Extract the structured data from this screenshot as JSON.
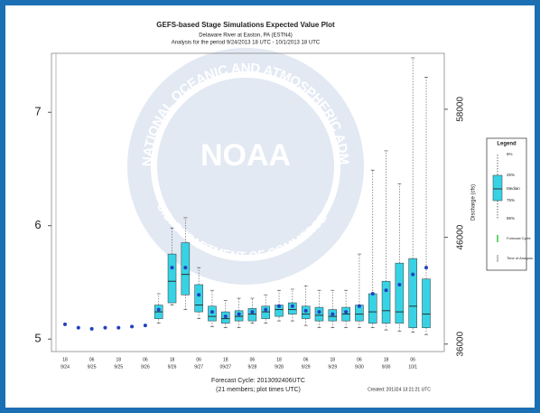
{
  "chart_data": {
    "type": "box",
    "title": "GEFS-based Stage Simulations Expected Value Plot",
    "subtitle": "Delaware River at Easton, PA (ESTN4)",
    "analysis_period": "Analysis  for the period 9/24/2013 18 UTC  -  10/1/2013 18 UTC",
    "y2_label": "Discharge (cfs)",
    "footer_cycle": "Forecast Cycle:  2013092406UTC",
    "footer_members": "(21 members; plot times UTC)",
    "created": "Created:  201324  13:21:21 UTC",
    "watermark": {
      "logo": "NOAA",
      "ring_top": "NATIONAL OCEANIC AND ATMOSPHERIC ADMINISTRATION",
      "ring_bottom": "U.S. DEPARTMENT OF COMMERCE"
    },
    "categories": [
      {
        "hour": "18",
        "date": "9/24"
      },
      null,
      {
        "hour": "06",
        "date": "9/25"
      },
      null,
      {
        "hour": "18",
        "date": "9/25"
      },
      null,
      {
        "hour": "06",
        "date": "9/26"
      },
      null,
      {
        "hour": "18",
        "date": "9/26"
      },
      null,
      {
        "hour": "06",
        "date": "9/27"
      },
      null,
      {
        "hour": "18",
        "date": "09/27"
      },
      null,
      {
        "hour": "06",
        "date": "9/28"
      },
      null,
      {
        "hour": "18",
        "date": "9/28"
      },
      null,
      {
        "hour": "06",
        "date": "9/29"
      },
      null,
      {
        "hour": "18",
        "date": "9/29"
      },
      null,
      {
        "hour": "06",
        "date": "9/30"
      },
      null,
      {
        "hour": "18",
        "date": "9/30"
      },
      null,
      {
        "hour": "06",
        "date": "10/1"
      },
      null
    ],
    "p5": [
      null,
      null,
      null,
      null,
      null,
      null,
      null,
      5.14,
      5.3,
      5.26,
      5.18,
      5.11,
      5.1,
      5.1,
      5.14,
      5.14,
      5.16,
      5.16,
      5.12,
      5.1,
      5.1,
      5.1,
      5.1,
      5.1,
      5.08,
      5.07,
      5.06,
      5.04
    ],
    "q1": [
      null,
      null,
      null,
      null,
      null,
      null,
      null,
      5.18,
      5.32,
      5.39,
      5.24,
      5.16,
      5.14,
      5.16,
      5.16,
      5.18,
      5.2,
      5.22,
      5.18,
      5.16,
      5.16,
      5.16,
      5.16,
      5.14,
      5.14,
      5.14,
      5.1,
      5.1
    ],
    "median": [
      null,
      null,
      null,
      null,
      null,
      null,
      null,
      5.24,
      5.51,
      5.57,
      5.3,
      5.2,
      5.18,
      5.2,
      5.22,
      5.24,
      5.26,
      5.26,
      5.22,
      5.21,
      5.2,
      5.22,
      5.22,
      5.24,
      5.25,
      5.24,
      5.29,
      5.22
    ],
    "q3": [
      null,
      null,
      null,
      null,
      null,
      null,
      null,
      5.3,
      5.75,
      5.85,
      5.48,
      5.29,
      5.24,
      5.25,
      5.27,
      5.29,
      5.3,
      5.32,
      5.29,
      5.28,
      5.26,
      5.28,
      5.3,
      5.4,
      5.51,
      5.67,
      5.71,
      5.53
    ],
    "p95": [
      null,
      null,
      null,
      null,
      null,
      null,
      null,
      5.4,
      5.98,
      6.07,
      5.63,
      5.43,
      5.34,
      5.36,
      5.36,
      5.39,
      5.43,
      5.44,
      5.47,
      5.43,
      5.43,
      5.43,
      5.75,
      6.49,
      6.66,
      6.37,
      7.48,
      7.31
    ],
    "mean": [
      5.13,
      5.1,
      5.09,
      5.1,
      5.1,
      5.11,
      5.12,
      5.26,
      5.63,
      5.63,
      5.39,
      5.24,
      5.2,
      5.22,
      5.24,
      5.26,
      5.29,
      5.29,
      5.25,
      5.24,
      5.22,
      5.24,
      5.29,
      5.4,
      5.43,
      5.48,
      5.57,
      5.63
    ],
    "box_color": "#37d3e4",
    "mean_color": "#2340c0",
    "ylim": [
      4.89,
      7.52
    ],
    "yticks": [
      5,
      6,
      7
    ],
    "y2lim": [
      35300,
      63240
    ],
    "y2ticks": [
      36000,
      46000,
      58000
    ],
    "legend": {
      "title": "Legend",
      "items": [
        "5%",
        "25%",
        "Median",
        "75%",
        "95%",
        "Forecast Cycle",
        "Time of Analysis"
      ]
    }
  }
}
